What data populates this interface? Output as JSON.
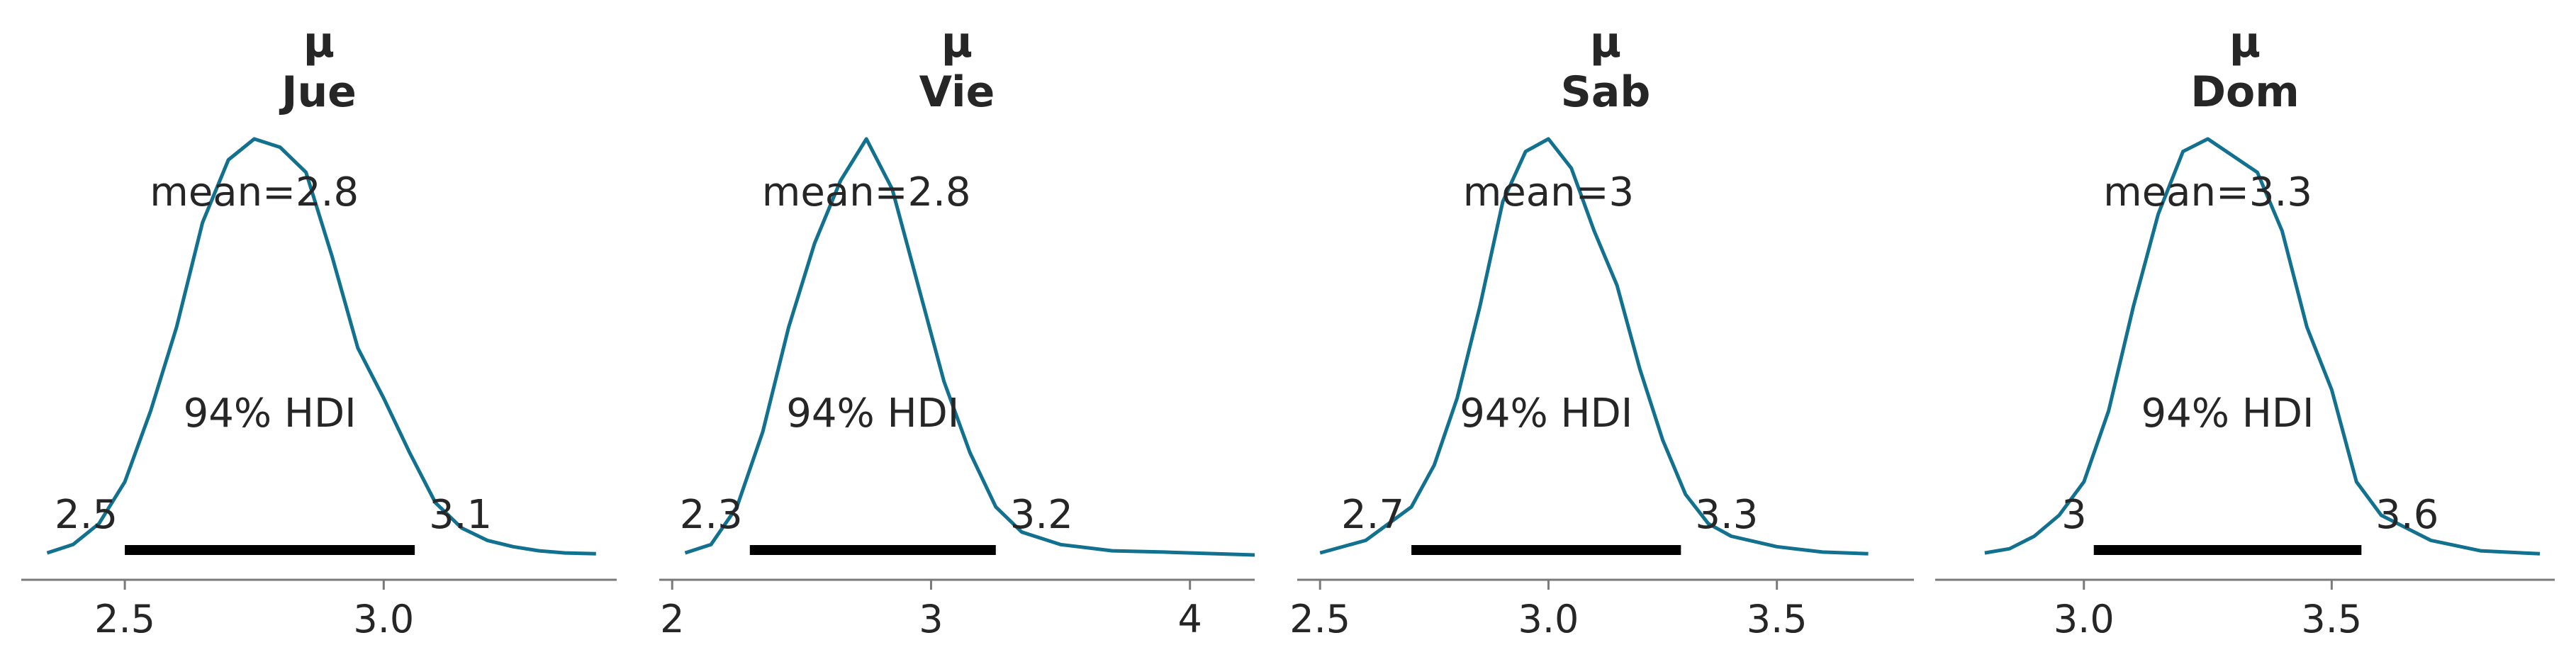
{
  "colors": {
    "curve": "#12718f",
    "hdi": "#000000",
    "axis": "#7a7a7a",
    "text": "#262626"
  },
  "chart_data": [
    {
      "type": "line",
      "title": "μ\nJue",
      "title_lines": [
        "μ",
        "Jue"
      ],
      "mean_label": "mean=2.8",
      "hdi_label": "94% HDI",
      "hdi": [
        2.5,
        3.06
      ],
      "hdi_tick_labels": [
        "2.5",
        "3.1"
      ],
      "xlim": [
        2.3,
        3.45
      ],
      "ylim": [
        0,
        1
      ],
      "xticks": [
        2.5,
        3.0
      ],
      "xtick_labels": [
        "2.5",
        "3.0"
      ],
      "x": [
        2.35,
        2.4,
        2.45,
        2.5,
        2.55,
        2.6,
        2.65,
        2.7,
        2.75,
        2.8,
        2.85,
        2.9,
        2.95,
        3.0,
        3.05,
        3.1,
        3.15,
        3.2,
        3.25,
        3.3,
        3.35,
        3.41
      ],
      "y": [
        0.01,
        0.03,
        0.08,
        0.18,
        0.35,
        0.55,
        0.8,
        0.95,
        1.0,
        0.98,
        0.92,
        0.72,
        0.5,
        0.38,
        0.25,
        0.13,
        0.07,
        0.04,
        0.025,
        0.015,
        0.01,
        0.008
      ]
    },
    {
      "type": "line",
      "title": "μ\nVie",
      "title_lines": [
        "μ",
        "Vie"
      ],
      "mean_label": "mean=2.8",
      "hdi_label": "94% HDI",
      "hdi": [
        2.3,
        3.25
      ],
      "hdi_tick_labels": [
        "2.3",
        "3.2"
      ],
      "xlim": [
        1.95,
        4.25
      ],
      "ylim": [
        0,
        1
      ],
      "xticks": [
        2,
        3,
        4
      ],
      "xtick_labels": [
        "2",
        "3",
        "4"
      ],
      "x": [
        2.05,
        2.15,
        2.25,
        2.35,
        2.45,
        2.55,
        2.65,
        2.75,
        2.85,
        2.95,
        3.05,
        3.15,
        3.25,
        3.35,
        3.5,
        3.7,
        3.9,
        4.1,
        4.25
      ],
      "y": [
        0.01,
        0.03,
        0.12,
        0.3,
        0.55,
        0.75,
        0.9,
        1.0,
        0.88,
        0.65,
        0.42,
        0.25,
        0.12,
        0.06,
        0.03,
        0.015,
        0.012,
        0.008,
        0.005
      ]
    },
    {
      "type": "line",
      "title": "μ\nSab",
      "title_lines": [
        "μ",
        "Sab"
      ],
      "mean_label": "mean=3",
      "hdi_label": "94% HDI",
      "hdi": [
        2.7,
        3.29
      ],
      "hdi_tick_labels": [
        "2.7",
        "3.3"
      ],
      "xlim": [
        2.45,
        3.8
      ],
      "ylim": [
        0,
        1
      ],
      "xticks": [
        2.5,
        3.0,
        3.5
      ],
      "xtick_labels": [
        "2.5",
        "3.0",
        "3.5"
      ],
      "x": [
        2.5,
        2.6,
        2.7,
        2.75,
        2.8,
        2.85,
        2.9,
        2.95,
        3.0,
        3.05,
        3.1,
        3.15,
        3.2,
        3.25,
        3.3,
        3.35,
        3.4,
        3.5,
        3.6,
        3.7
      ],
      "y": [
        0.01,
        0.04,
        0.12,
        0.22,
        0.38,
        0.6,
        0.85,
        0.97,
        1.0,
        0.93,
        0.78,
        0.65,
        0.45,
        0.28,
        0.15,
        0.08,
        0.05,
        0.025,
        0.012,
        0.008
      ]
    },
    {
      "type": "line",
      "title": "μ\nDom",
      "title_lines": [
        "μ",
        "Dom"
      ],
      "mean_label": "mean=3.3",
      "hdi_label": "94% HDI",
      "hdi": [
        3.02,
        3.56
      ],
      "hdi_tick_labels": [
        "3",
        "3.6"
      ],
      "xlim": [
        2.7,
        3.95
      ],
      "ylim": [
        0,
        1
      ],
      "xticks": [
        3.0,
        3.5
      ],
      "xtick_labels": [
        "3.0",
        "3.5"
      ],
      "x": [
        2.8,
        2.85,
        2.9,
        2.95,
        3.0,
        3.05,
        3.1,
        3.15,
        3.2,
        3.25,
        3.3,
        3.35,
        3.4,
        3.45,
        3.5,
        3.55,
        3.6,
        3.65,
        3.7,
        3.8,
        3.92
      ],
      "y": [
        0.01,
        0.02,
        0.05,
        0.1,
        0.18,
        0.35,
        0.6,
        0.82,
        0.97,
        1.0,
        0.96,
        0.92,
        0.78,
        0.55,
        0.4,
        0.18,
        0.1,
        0.07,
        0.04,
        0.015,
        0.008
      ]
    }
  ]
}
